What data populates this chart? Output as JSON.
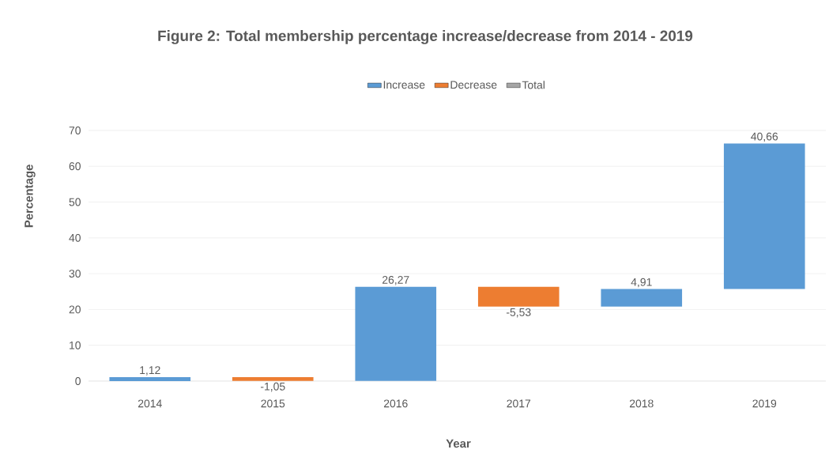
{
  "chart_data": {
    "type": "bar",
    "title": "Figure 2: Total membership percentage increase/decrease from 2014 - 2019",
    "xlabel": "Year",
    "ylabel": "Percentage",
    "categories": [
      "2014",
      "2015",
      "2016",
      "2017",
      "2018",
      "2019"
    ],
    "series": [
      {
        "name": "Increase",
        "color": "#5b9bd5",
        "values": [
          1.12,
          null,
          26.27,
          null,
          4.91,
          40.66
        ],
        "base": [
          0,
          null,
          0.07,
          null,
          20.81,
          25.72
        ],
        "value_labels": [
          "1,12",
          null,
          "26,27",
          null,
          "4,91",
          "40,66"
        ]
      },
      {
        "name": "Decrease",
        "color": "#ed7d31",
        "values": [
          null,
          -1.05,
          null,
          -5.53,
          null,
          null
        ],
        "base": [
          null,
          1.12,
          null,
          26.34,
          null,
          null
        ],
        "value_labels": [
          null,
          "-1,05",
          null,
          "-5,53",
          null,
          null
        ]
      },
      {
        "name": "Total",
        "color": "#a5a5a5",
        "values": [
          null,
          null,
          null,
          null,
          null,
          null
        ]
      }
    ],
    "ylim": [
      0,
      70
    ],
    "yticks": [
      0,
      10,
      20,
      30,
      40,
      50,
      60,
      70
    ],
    "grid": "y",
    "legend": "top"
  }
}
